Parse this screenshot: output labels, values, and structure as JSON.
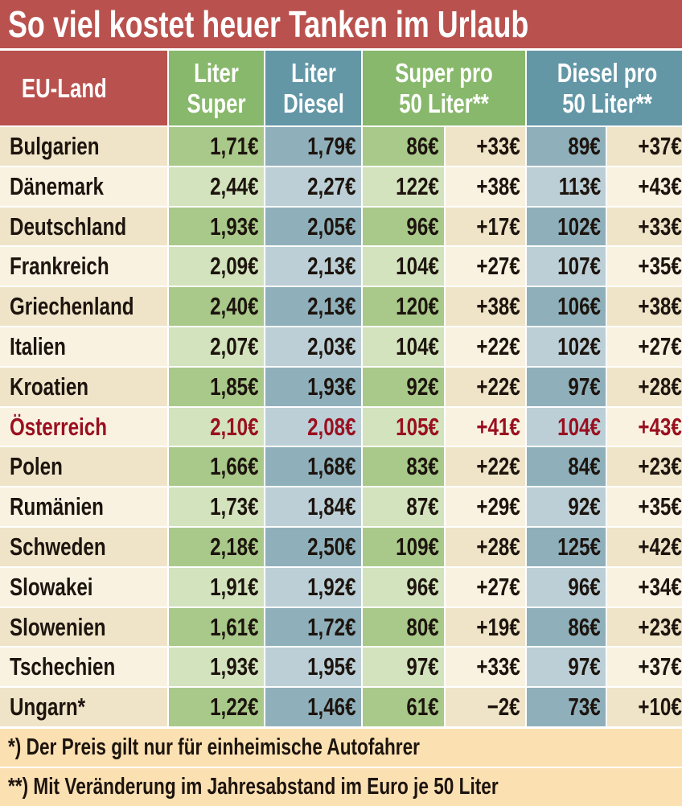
{
  "title": "So viel kostet heuer Tanken im Urlaub",
  "colors": {
    "red": "#b9524e",
    "green": "#88b86b",
    "blue": "#6397a6",
    "highlight": "#9a1020",
    "footer": "#fbe0b2"
  },
  "headers": {
    "land": "EU-Land",
    "liter_super": "Liter Super",
    "liter_diesel": "Liter Diesel",
    "super50": "Super pro 50 Liter**",
    "diesel50": "Diesel pro 50 Liter**"
  },
  "rows": [
    [
      "Bulgarien",
      "1,71€",
      "1,79€",
      "86€",
      "+33€",
      "89€",
      "+37€"
    ],
    [
      "Dänemark",
      "2,44€",
      "2,27€",
      "122€",
      "+38€",
      "113€",
      "+43€"
    ],
    [
      "Deutschland",
      "1,93€",
      "2,05€",
      "96€",
      "+17€",
      "102€",
      "+33€"
    ],
    [
      "Frankreich",
      "2,09€",
      "2,13€",
      "104€",
      "+27€",
      "107€",
      "+35€"
    ],
    [
      "Griechenland",
      "2,40€",
      "2,13€",
      "120€",
      "+38€",
      "106€",
      "+38€"
    ],
    [
      "Italien",
      "2,07€",
      "2,03€",
      "104€",
      "+22€",
      "102€",
      "+27€"
    ],
    [
      "Kroatien",
      "1,85€",
      "1,93€",
      "92€",
      "+22€",
      "97€",
      "+28€"
    ],
    [
      "Österreich",
      "2,10€",
      "2,08€",
      "105€",
      "+41€",
      "104€",
      "+43€"
    ],
    [
      "Polen",
      "1,66€",
      "1,68€",
      "83€",
      "+22€",
      "84€",
      "+23€"
    ],
    [
      "Rumänien",
      "1,73€",
      "1,84€",
      "87€",
      "+29€",
      "92€",
      "+35€"
    ],
    [
      "Schweden",
      "2,18€",
      "2,50€",
      "109€",
      "+28€",
      "125€",
      "+42€"
    ],
    [
      "Slowakei",
      "1,91€",
      "1,92€",
      "96€",
      "+27€",
      "96€",
      "+34€"
    ],
    [
      "Slowenien",
      "1,61€",
      "1,72€",
      "80€",
      "+19€",
      "86€",
      "+23€"
    ],
    [
      "Tschechien",
      "1,93€",
      "1,95€",
      "97€",
      "+33€",
      "97€",
      "+37€"
    ],
    [
      "Ungarn*",
      "1,22€",
      "1,46€",
      "61€",
      "−2€",
      "73€",
      "+10€"
    ]
  ],
  "highlight_row": "Österreich",
  "footnotes": [
    "*) Der Preis gilt nur für einheimische Autofahrer",
    "**) Mit Veränderung im Jahresabstand im Euro je 50 Liter"
  ]
}
